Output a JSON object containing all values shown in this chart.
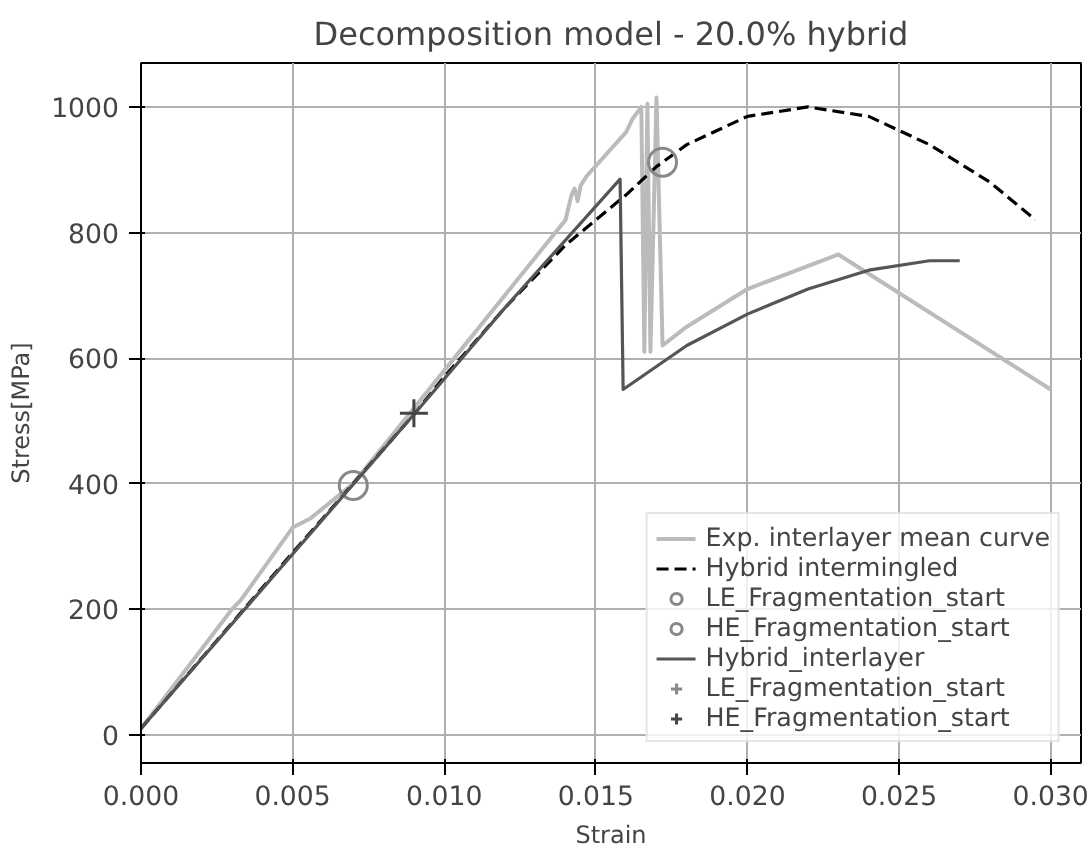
{
  "chart_data": {
    "type": "line",
    "title": "Decomposition model - 20.0% hybrid",
    "xlabel": "Strain",
    "ylabel": "Stress[MPa]",
    "xlim": [
      0,
      0.031
    ],
    "ylim": [
      -45,
      1070
    ],
    "xticks": [
      {
        "value": 0,
        "label": "0.000"
      },
      {
        "value": 0.005,
        "label": "0.005"
      },
      {
        "value": 0.01,
        "label": "0.010"
      },
      {
        "value": 0.015,
        "label": "0.015"
      },
      {
        "value": 0.02,
        "label": "0.020"
      },
      {
        "value": 0.025,
        "label": "0.025"
      },
      {
        "value": 0.03,
        "label": "0.030"
      }
    ],
    "yticks": [
      0,
      200,
      400,
      600,
      800,
      1000
    ],
    "grid": true,
    "legend": "bottom right",
    "series": [
      {
        "name": "Exp. interlayer mean curve",
        "color": "#bbbbbb",
        "line_style": "solid",
        "x": [
          0,
          0.003,
          0.0033,
          0.005,
          0.0056,
          0.007,
          0.009,
          0.01,
          0.012,
          0.014,
          0.0142,
          0.0143,
          0.0144,
          0.0145,
          0.0147,
          0.016,
          0.0162,
          0.0165,
          0.0166,
          0.0167,
          0.0168,
          0.017,
          0.0172,
          0.018,
          0.02,
          0.023,
          0.03
        ],
        "values": [
          10,
          200,
          215,
          330,
          345,
          400,
          520,
          580,
          700,
          820,
          860,
          870,
          850,
          875,
          890,
          960,
          980,
          1000,
          610,
          1005,
          610,
          1015,
          620,
          650,
          710,
          765,
          550
        ]
      },
      {
        "name": "Hybrid intermingled",
        "color": "#000000",
        "line_style": "dashed",
        "x": [
          0,
          0.005,
          0.009,
          0.01,
          0.012,
          0.014,
          0.016,
          0.017,
          0.018,
          0.02,
          0.022,
          0.024,
          0.026,
          0.028,
          0.0295
        ],
        "values": [
          10,
          290,
          510,
          570,
          680,
          780,
          860,
          905,
          940,
          985,
          1000,
          985,
          940,
          880,
          820
        ]
      },
      {
        "name": "LE_Fragmentation_start",
        "type": "scatter",
        "marker": "circle",
        "color": "#888888",
        "x": [
          0.0172
        ],
        "values": [
          912
        ]
      },
      {
        "name": "HE_Fragmentation_start",
        "type": "scatter",
        "marker": "circle",
        "color": "#888888",
        "x": [
          0.007
        ],
        "values": [
          397
        ]
      },
      {
        "name": "Hybrid_interlayer",
        "color": "#555555",
        "line_style": "solid",
        "x": [
          0,
          0.009,
          0.012,
          0.0158,
          0.0159,
          0.018,
          0.02,
          0.022,
          0.024,
          0.026,
          0.027
        ],
        "values": [
          10,
          510,
          680,
          885,
          550,
          620,
          670,
          710,
          740,
          755,
          755
        ]
      },
      {
        "name": "LE_Fragmentation_start",
        "type": "scatter",
        "marker": "cross",
        "color": "#888888",
        "x": [
          null
        ],
        "values": [
          null
        ]
      },
      {
        "name": "HE_Fragmentation_start",
        "type": "scatter",
        "marker": "cross",
        "color": "#444444",
        "x": [
          0.009
        ],
        "values": [
          512
        ]
      }
    ]
  }
}
